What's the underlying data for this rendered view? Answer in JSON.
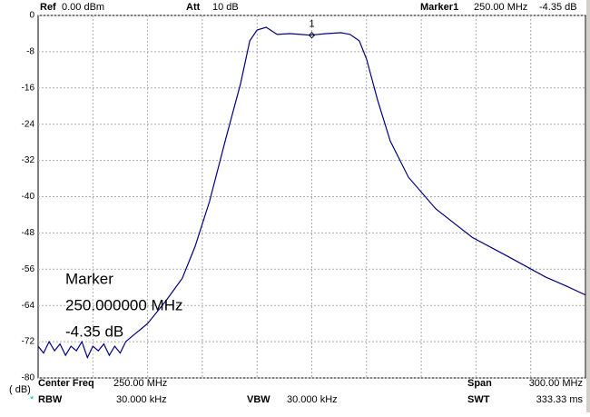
{
  "header": {
    "ref_label": "Ref",
    "ref_value": "0.00 dBm",
    "att_label": "Att",
    "att_value": "10 dB",
    "marker_label": "Marker1",
    "marker_freq": "250.00 MHz",
    "marker_level": "-4.35 dB"
  },
  "footer": {
    "center_label": "Center Freq",
    "center_value": "250.00 MHz",
    "span_label": "Span",
    "span_value": "300.00 MHz",
    "rbw_star": "*",
    "rbw_label": "RBW",
    "rbw_value": "30.000 kHz",
    "vbw_label": "VBW",
    "vbw_value": "30.000 kHz",
    "swt_label": "SWT",
    "swt_value": "333.33 ms"
  },
  "marker_readout": [
    "Marker",
    "250.000000 MHz",
    "-4.35 dB"
  ],
  "chart_data": {
    "type": "line",
    "y_label": "( dB)",
    "color": "#000080",
    "grid": true,
    "xlim": [
      100,
      400
    ],
    "ylim": [
      -80,
      0
    ],
    "yticks": [
      0,
      -8,
      -16,
      -24,
      -32,
      -40,
      -48,
      -56,
      -64,
      -72,
      -80
    ],
    "x": [
      100,
      103,
      106,
      109,
      112,
      115,
      118,
      121,
      124,
      127,
      130,
      133,
      136,
      139,
      142,
      145,
      148,
      151,
      154,
      157,
      160,
      164,
      170,
      179,
      186,
      194,
      203,
      211,
      216,
      220,
      225,
      231,
      238,
      244,
      249,
      258,
      266,
      271,
      276,
      280,
      286,
      293,
      303,
      318,
      338,
      358,
      378,
      390,
      400
    ],
    "values": [
      -73,
      -74.5,
      -72,
      -74,
      -72.5,
      -75,
      -73,
      -74,
      -72,
      -75.5,
      -73,
      -74,
      -72.5,
      -75,
      -73,
      -74.5,
      -72,
      -71,
      -70,
      -69,
      -68,
      -66,
      -63,
      -58,
      -51,
      -41,
      -27,
      -15,
      -5.6,
      -3.2,
      -2.6,
      -4.2,
      -4,
      -4.2,
      -4.35,
      -4,
      -3.8,
      -4.2,
      -5.6,
      -9.6,
      -18.6,
      -27.7,
      -35.7,
      -42.7,
      -49,
      -53.3,
      -57.7,
      -59.8,
      -61.7
    ],
    "markers": [
      {
        "label": "1",
        "x": 250,
        "y": -4.35
      }
    ]
  }
}
